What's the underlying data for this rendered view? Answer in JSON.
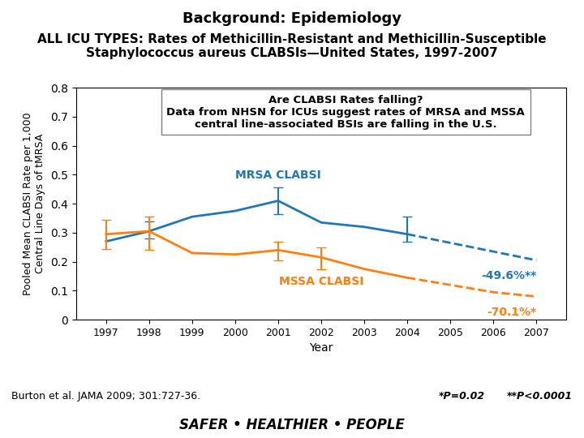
{
  "chart_data": {
    "type": "line",
    "title": "Background: Epidemiology",
    "subtitle": "ALL ICU TYPES: Rates of Methicillin-Resistant and Methicillin-Susceptible Staphylococcus aureus CLABSIs—United States, 1997-2007",
    "x_label": "Year",
    "y_label": "Pooled Mean CLABSI Rate per 1,000\nCentral Line Days of tMRSA",
    "x": [
      1997,
      1998,
      1999,
      2000,
      2001,
      2002,
      2003,
      2004,
      2005,
      2006,
      2007
    ],
    "series": [
      {
        "name": "MRSA CLABSI",
        "color": "#1f77b4",
        "line_style": "solid",
        "values": [
          0.27,
          0.305,
          0.355,
          0.375,
          0.41,
          0.335,
          0.32,
          0.295,
          null,
          null,
          null
        ],
        "error_upper": [
          null,
          0.035,
          null,
          null,
          0.045,
          null,
          null,
          0.06,
          null,
          null,
          null
        ],
        "error_lower": [
          null,
          0.025,
          null,
          null,
          0.045,
          null,
          null,
          0.025,
          null,
          null,
          null
        ]
      },
      {
        "color": "#1f77b4",
        "line_style": "dashed",
        "annotation": "-49.6%**",
        "values": [
          null,
          null,
          null,
          null,
          null,
          null,
          null,
          0.295,
          0.265,
          0.235,
          0.205
        ]
      },
      {
        "name": "MSSA CLABSI",
        "color": "#ff7f0e",
        "line_style": "solid",
        "values": [
          0.295,
          0.305,
          0.23,
          0.225,
          0.24,
          0.215,
          0.175,
          0.145,
          null,
          null,
          null
        ],
        "error_upper": [
          0.05,
          0.05,
          null,
          null,
          0.03,
          0.035,
          null,
          null,
          null,
          null,
          null
        ],
        "error_lower": [
          0.05,
          0.065,
          null,
          null,
          0.035,
          0.04,
          null,
          null,
          null,
          null,
          null
        ]
      },
      {
        "color": "#ff7f0e",
        "line_style": "dashed",
        "annotation": "-70.1%*",
        "values": [
          null,
          null,
          null,
          null,
          null,
          null,
          null,
          0.145,
          0.12,
          0.095,
          0.08
        ]
      }
    ],
    "xlim": [
      1996.3,
      2007.7
    ],
    "xticks": [
      1997,
      1998,
      1999,
      2000,
      2001,
      2002,
      2003,
      2004,
      2005,
      2006,
      2007
    ],
    "ylim": [
      0,
      0.8
    ],
    "yticks": [
      0,
      0.1,
      0.2,
      0.3,
      0.4,
      0.5,
      0.6,
      0.7,
      0.8
    ],
    "grid": false,
    "text_box": [
      "Are CLABSI Rates falling?",
      "Data from NHSN for ICUs suggest rates of MRSA and MSSA",
      "central line-associated BSIs are falling in the U.S."
    ],
    "notes": [
      "Burton et al. JAMA 2009; 301:727-36.",
      "*P=0.02",
      "**P<0.0001"
    ],
    "footer": "SAFER • HEALTHIER • PEOPLE"
  }
}
